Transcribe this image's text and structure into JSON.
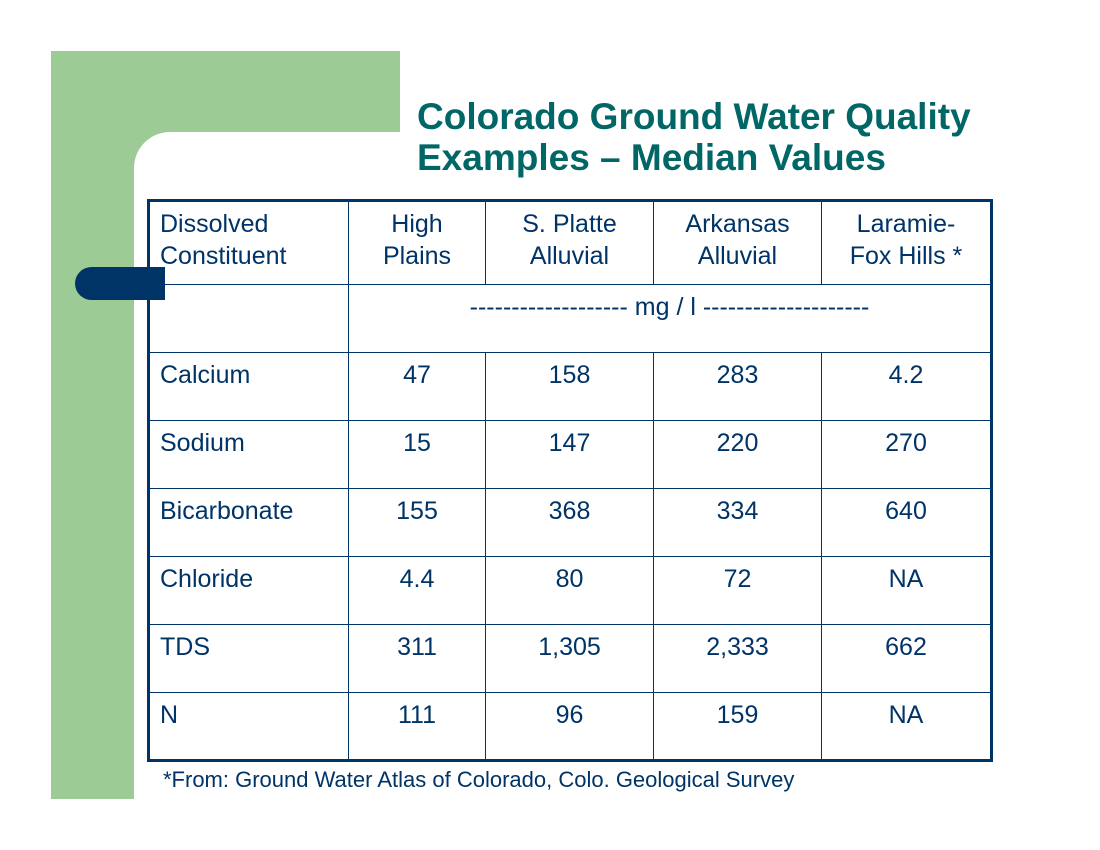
{
  "title": {
    "line1": "Colorado Ground Water Quality",
    "line2": "Examples – Median Values"
  },
  "table": {
    "headers": [
      {
        "line1": "Dissolved",
        "line2": "Constituent"
      },
      {
        "line1": "High",
        "line2": "Plains"
      },
      {
        "line1": "S. Platte",
        "line2": "Alluvial"
      },
      {
        "line1": "Arkansas",
        "line2": "Alluvial"
      },
      {
        "line1": "Laramie-",
        "line2": "Fox Hills *"
      }
    ],
    "units": "------------------- mg / l --------------------",
    "rows": [
      {
        "name": "Calcium",
        "values": [
          "47",
          "158",
          "283",
          "4.2"
        ]
      },
      {
        "name": "Sodium",
        "values": [
          "15",
          "147",
          "220",
          "270"
        ]
      },
      {
        "name": "Bicarbonate",
        "values": [
          "155",
          "368",
          "334",
          "640"
        ]
      },
      {
        "name": "Chloride",
        "values": [
          "4.4",
          "80",
          "72",
          "NA"
        ]
      },
      {
        "name": "TDS",
        "values": [
          "311",
          "1,305",
          "2,333",
          "662"
        ]
      },
      {
        "name": "N",
        "values": [
          "111",
          "96",
          "159",
          "NA"
        ]
      }
    ]
  },
  "footnote": "*From:  Ground Water Atlas of Colorado, Colo. Geological Survey",
  "colors": {
    "accent_green": "#9ccb96",
    "navy": "#003366",
    "title_teal": "#006666"
  }
}
